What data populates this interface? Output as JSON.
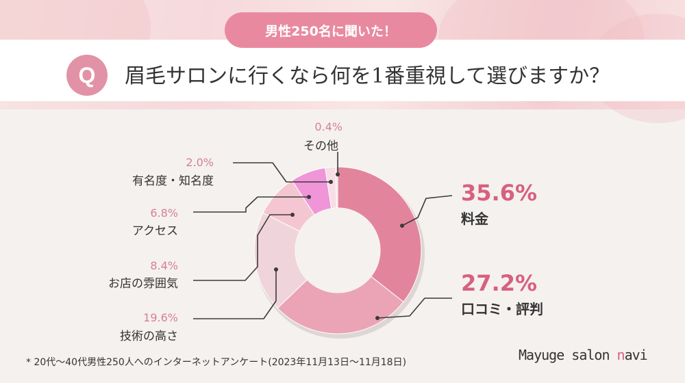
{
  "badge": "男性250名に聞いた！",
  "question": {
    "mark": "Q",
    "text": "眉毛サロンに行くなら何を1番重視して選びますか？"
  },
  "chart_data": {
    "type": "pie",
    "style": "donut",
    "start": "top, clockwise",
    "slices": [
      {
        "label": "料金",
        "value": 35.6,
        "display": "35.6%",
        "color": "#e3849d"
      },
      {
        "label": "口コミ・評判",
        "value": 27.2,
        "display": "27.2%",
        "color": "#eaa4b5"
      },
      {
        "label": "技術の高さ",
        "value": 19.6,
        "display": "19.6%",
        "color": "#efd5db"
      },
      {
        "label": "お店の雰囲気",
        "value": 8.4,
        "display": "8.4%",
        "color": "#f4c6d2"
      },
      {
        "label": "アクセス",
        "value": 6.8,
        "display": "6.8%",
        "color": "#ef95d8"
      },
      {
        "label": "有名度・知名度",
        "value": 2.0,
        "display": "2.0%",
        "color": "#f7dde5"
      },
      {
        "label": "その他",
        "value": 0.4,
        "display": "0.4%",
        "color": "#e9e0e2"
      }
    ]
  },
  "footnote": "* 20代〜40代男性250人へのインターネットアンケート(2023年11月13日〜11月18日)",
  "brand": {
    "prefix": "Mayuge salon ",
    "accent": "n",
    "suffix": "avi"
  }
}
